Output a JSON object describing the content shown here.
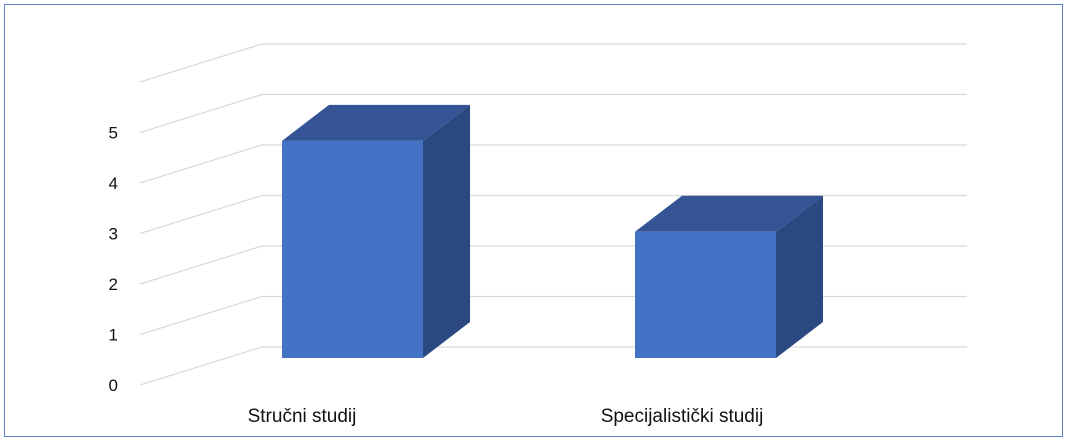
{
  "chart_data": {
    "type": "bar",
    "title": "",
    "xlabel": "",
    "ylabel": "",
    "categories": [
      "Stručni studij",
      "Specijalistički studij"
    ],
    "values": [
      4.3,
      2.5
    ],
    "ylim": [
      0,
      5
    ],
    "yticks": [
      "0",
      "1",
      "2",
      "3",
      "4",
      "5"
    ],
    "grid": true,
    "style": "3d-column",
    "colors": {
      "bar_front": "#4472c4",
      "bar_top": "#345496",
      "bar_side": "#2b4880",
      "grid": "#d9d9d9",
      "border": "#5b7fc4"
    }
  }
}
